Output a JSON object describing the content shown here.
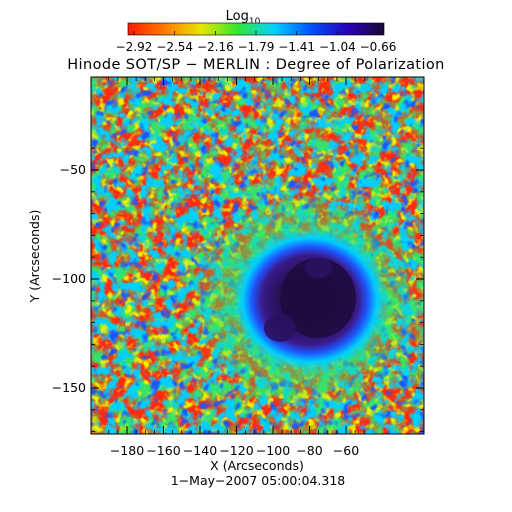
{
  "colorbar": {
    "label_main": "Log",
    "label_sub": "10",
    "ticks": [
      "−2.92",
      "−2.54",
      "−2.16",
      "−1.79",
      "−1.41",
      "−1.04",
      "−0.66"
    ],
    "stops": [
      "#ff1a00",
      "#ff7a00",
      "#e6e600",
      "#33e633",
      "#00d2ff",
      "#0050ff",
      "#2a00b8",
      "#1b0a35"
    ]
  },
  "title": "Hinode SOT/SP − MERLIN : Degree of Polarization",
  "y_label": "Y (Arcseconds)",
  "x_label": "X (Arcseconds)",
  "x_ticks": [
    "−180",
    "−160",
    "−140",
    "−120",
    "−100",
    "−80",
    "−60"
  ],
  "y_ticks": [
    "−50",
    "−100",
    "−150"
  ],
  "timestamp": "1−May−2007 05:00:04.318",
  "colors": {
    "red": "#ff2a10",
    "orange": "#ff8a00",
    "yellow": "#f0f000",
    "green": "#36e36a",
    "cyan": "#00cfff",
    "blue": "#1e56ff",
    "umbra": "#3b1770",
    "umbra_core": "#1e0b3d"
  }
}
